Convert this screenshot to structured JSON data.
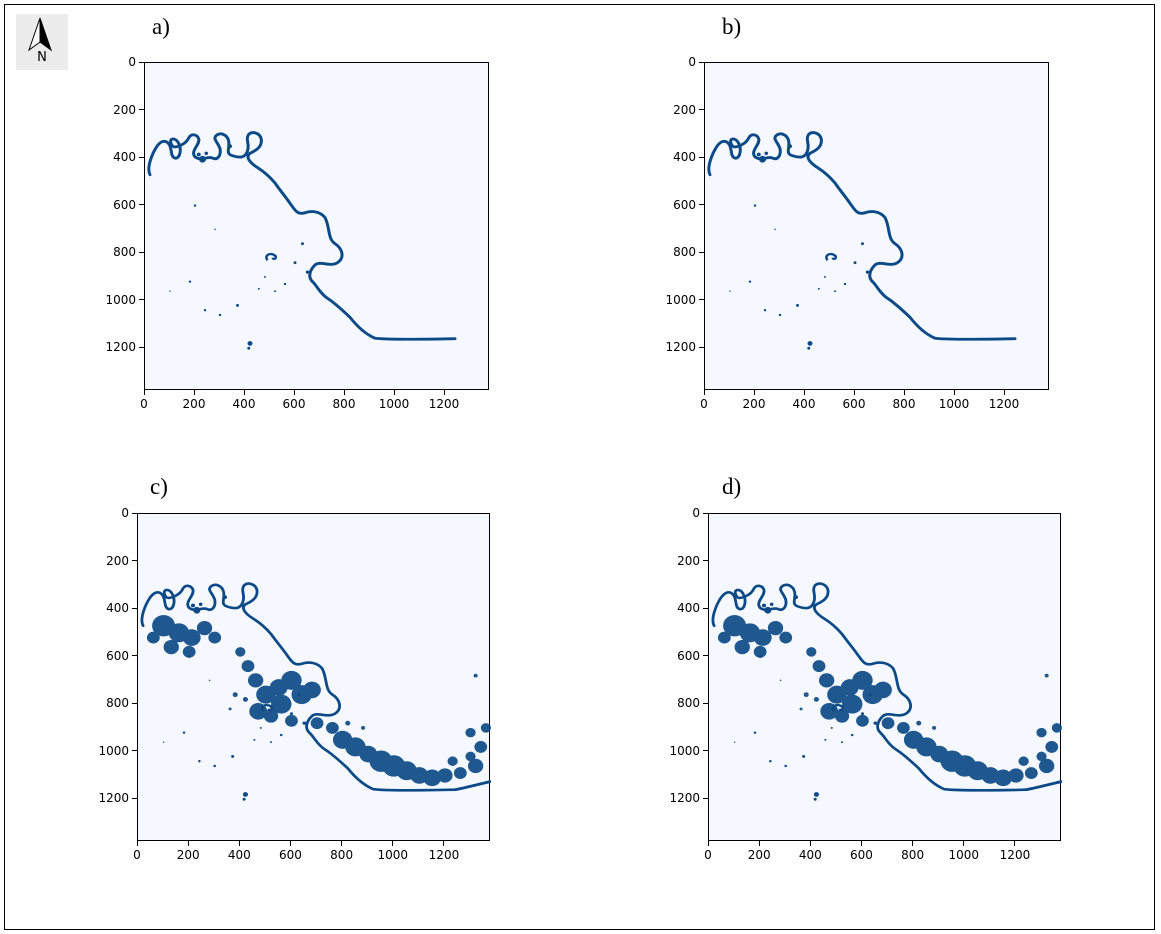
{
  "compass": {
    "icon": "north-arrow-icon",
    "letter": "N"
  },
  "colors": {
    "background": "#f5f9ff",
    "water": "#0b4a86",
    "frame": "#000000"
  },
  "panels": [
    {
      "label": "a)"
    },
    {
      "label": "b)"
    },
    {
      "label": "c)"
    },
    {
      "label": "d)"
    }
  ],
  "chart_data": [
    {
      "type": "heatmap",
      "title": "a)",
      "colormap": "Blues",
      "xticks": [
        0,
        200,
        400,
        600,
        800,
        1000,
        1200
      ],
      "yticks": [
        0,
        200,
        400,
        600,
        800,
        1000,
        1200
      ],
      "xlim": [
        0,
        1380
      ],
      "ylim": [
        1380,
        0
      ],
      "content": "river channel water mask"
    },
    {
      "type": "heatmap",
      "title": "b)",
      "colormap": "Blues",
      "xticks": [
        0,
        200,
        400,
        600,
        800,
        1000,
        1200
      ],
      "yticks": [
        0,
        200,
        400,
        600,
        800,
        1000,
        1200
      ],
      "xlim": [
        0,
        1380
      ],
      "ylim": [
        1380,
        0
      ],
      "content": "river channel water mask"
    },
    {
      "type": "heatmap",
      "title": "c)",
      "colormap": "Blues",
      "xticks": [
        0,
        200,
        400,
        600,
        800,
        1000,
        1200
      ],
      "yticks": [
        0,
        200,
        400,
        600,
        800,
        1000,
        1200
      ],
      "xlim": [
        0,
        1380
      ],
      "ylim": [
        1380,
        0
      ],
      "content": "river channel and flooded area water mask"
    },
    {
      "type": "heatmap",
      "title": "d)",
      "colormap": "Blues",
      "xticks": [
        0,
        200,
        400,
        600,
        800,
        1000,
        1200
      ],
      "yticks": [
        0,
        200,
        400,
        600,
        800,
        1000,
        1200
      ],
      "xlim": [
        0,
        1380
      ],
      "ylim": [
        1380,
        0
      ],
      "content": "river channel and flooded area water mask"
    }
  ]
}
